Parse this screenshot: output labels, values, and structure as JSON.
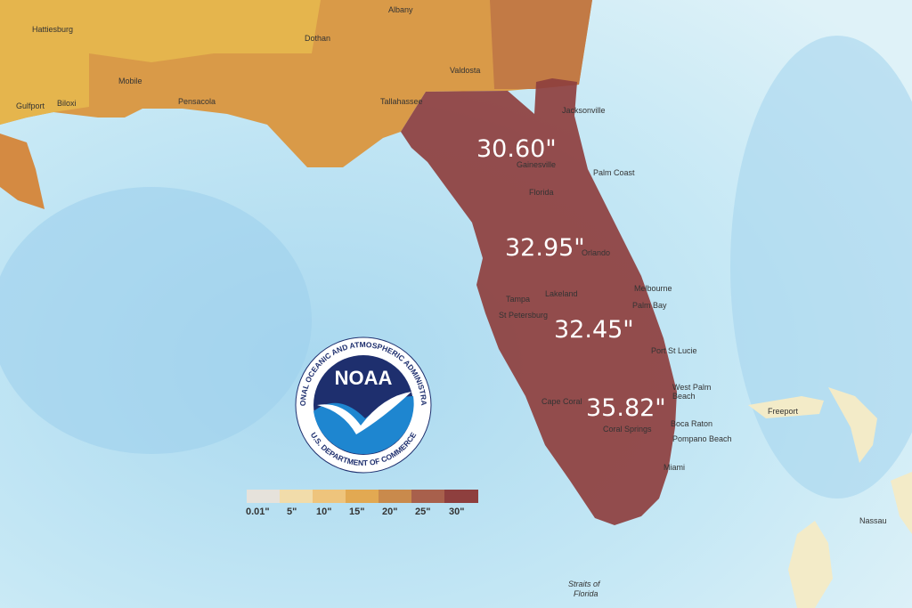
{
  "map": {
    "rainfall_labels": [
      "30.60\"",
      "32.95\"",
      "32.45\"",
      "35.82\""
    ],
    "places": [
      "Hattiesburg",
      "Albany",
      "Dothan",
      "Mobile",
      "Valdosta",
      "Gulfport",
      "Biloxi",
      "Pensacola",
      "Tallahassee",
      "Jacksonville",
      "Gainesville",
      "Florida",
      "Palm Coast",
      "Orlando",
      "Tampa",
      "Lakeland",
      "Melbourne",
      "Palm Bay",
      "St Petersburg",
      "Port St Lucie",
      "West Palm",
      "Beach",
      "Cape Coral",
      "Boca Raton",
      "Coral Springs",
      "Pompano Beach",
      "Miami",
      "Freeport",
      "Nassau",
      "Straits of",
      "Florida"
    ],
    "legend": {
      "labels": [
        "0.01\"",
        "5\"",
        "10\"",
        "15\"",
        "20\"",
        "25\"",
        "30\""
      ]
    },
    "logo": {
      "name": "NOAA",
      "ring_top": "NATIONAL OCEANIC AND ATMOSPHERIC ADMINISTRATION",
      "ring_bottom": "U.S. DEPARTMENT OF COMMERCE"
    }
  }
}
